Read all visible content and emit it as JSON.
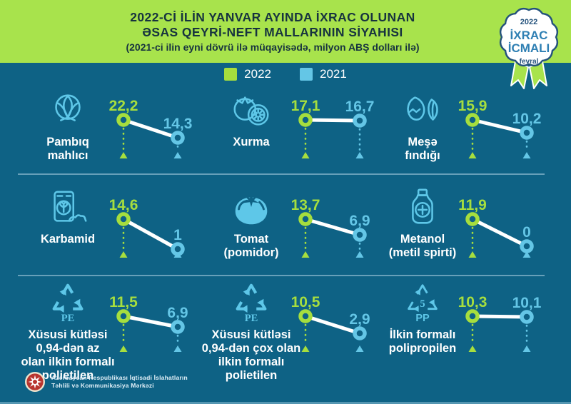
{
  "header": {
    "title_line1": "2022-Cİ İLİN YANVAR AYINDA İXRAC OLUNAN",
    "title_line2": "ƏSAS QEYRİ-NEFT MALLARININ SİYAHISI",
    "title_line3": "(2021-ci ilin eyni dövrü ilə müqayisədə, milyon ABŞ dolları ilə)"
  },
  "badge": {
    "year": "2022",
    "title_line1": "İXRAC",
    "title_line2": "İCMALI",
    "month": "fevral"
  },
  "legend": {
    "items": [
      {
        "label": "2022",
        "color": "#a6de3e"
      },
      {
        "label": "2021",
        "color": "#64c6e6"
      }
    ]
  },
  "footer": {
    "org_line1": "Azərbaycan Respublikası İqtisadi İslahatların",
    "org_line2": "Təhlili və Kommunikasiya Mərkəzi"
  },
  "colors": {
    "header_bg": "#a8e34c",
    "background": "#0e6285",
    "accent_2022": "#a6de3e",
    "accent_2021": "#64c6e6",
    "icon_blue": "#5ec7e8",
    "title_text": "#17333f",
    "connector": "#ffffff",
    "badge_navy": "#24527c",
    "badge_blue": "#2e7fb3"
  },
  "chart_data": {
    "type": "line",
    "subtype": "slope-comparison-small-multiples",
    "title": "2022-ci ilin yanvar ayında ixrac olunan əsas qeyri-neft mallarının siyahısı",
    "subtitle": "(2021-ci ilin eyni dövrü ilə müqayisədə, milyon ABŞ dolları ilə)",
    "unit": "milyon ABŞ dolları",
    "series": [
      "2022",
      "2021"
    ],
    "legend_position": "top",
    "items": [
      {
        "name": "Pambıq mahlıcı",
        "icon": "cotton",
        "label_lines": [
          "Pambıq",
          "mahlıcı"
        ],
        "v2022": 22.2,
        "v2021": 14.3,
        "d2022": "22,2",
        "d2021": "14,3"
      },
      {
        "name": "Xurma",
        "icon": "persimmon",
        "label_lines": [
          "Xurma"
        ],
        "v2022": 17.1,
        "v2021": 16.7,
        "d2022": "17,1",
        "d2021": "16,7"
      },
      {
        "name": "Meşə fındığı",
        "icon": "hazelnut",
        "label_lines": [
          "Meşə",
          "fındığı"
        ],
        "v2022": 15.9,
        "v2021": 10.2,
        "d2022": "15,9",
        "d2021": "10,2"
      },
      {
        "name": "Karbamid",
        "icon": "fertilizer-bag",
        "label_lines": [
          "Karbamid"
        ],
        "v2022": 14.6,
        "v2021": 1,
        "d2022": "14,6",
        "d2021": "1"
      },
      {
        "name": "Tomat (pomidor)",
        "icon": "tomato",
        "label_lines": [
          "Tomat",
          "(pomidor)"
        ],
        "v2022": 13.7,
        "v2021": 6.9,
        "d2022": "13,7",
        "d2021": "6,9"
      },
      {
        "name": "Metanol (metil spirti)",
        "icon": "medicine-bottle",
        "label_lines": [
          "Metanol",
          "(metil spirti)"
        ],
        "v2022": 11.9,
        "v2021": 0,
        "d2022": "11,9",
        "d2021": "0"
      },
      {
        "name": "Xüsusi kütləsi 0,94-dən az olan ilkin formalı polietilen",
        "icon": "recycle-pe",
        "label_lines": [
          "Xüsusi kütləsi",
          "0,94-dən az",
          "olan ilkin formalı",
          "polietilen"
        ],
        "v2022": 11.5,
        "v2021": 6.9,
        "d2022": "11,5",
        "d2021": "6,9"
      },
      {
        "name": "Xüsusi kütləsi 0,94-dən çox olan ilkin formalı polietilen",
        "icon": "recycle-pe",
        "label_lines": [
          "Xüsusi kütləsi",
          "0,94-dən çox olan",
          "ilkin formalı",
          "polietilen"
        ],
        "v2022": 10.5,
        "v2021": 2.9,
        "d2022": "10,5",
        "d2021": "2,9"
      },
      {
        "name": "İlkin formalı polipropilen",
        "icon": "recycle-pp",
        "label_lines": [
          "İlkin formalı",
          "polipropilen"
        ],
        "v2022": 10.3,
        "v2021": 10.1,
        "d2022": "10,3",
        "d2021": "10,1"
      }
    ]
  }
}
